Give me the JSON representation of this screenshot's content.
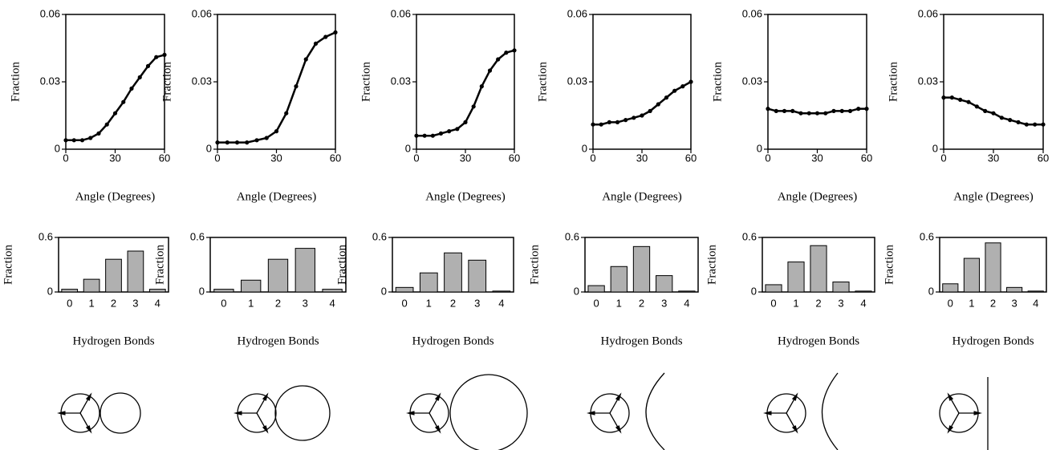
{
  "chart_data": [
    {
      "type": "line",
      "x_label": "Angle (Degrees)",
      "y_label": "Fraction",
      "color": "#000000",
      "x": [
        0,
        5,
        10,
        15,
        20,
        25,
        30,
        35,
        40,
        45,
        50,
        55,
        60
      ],
      "values": [
        0.004,
        0.004,
        0.004,
        0.005,
        0.007,
        0.011,
        0.016,
        0.021,
        0.027,
        0.032,
        0.037,
        0.041,
        0.042
      ],
      "xlim": [
        0,
        60
      ],
      "ylim": [
        0,
        0.06
      ],
      "xticks": [
        0,
        30,
        60
      ],
      "yticks": [
        0,
        0.03,
        0.06
      ]
    },
    {
      "type": "line",
      "x_label": "Angle (Degrees)",
      "y_label": "Fraction",
      "color": "#000000",
      "x": [
        0,
        5,
        10,
        15,
        20,
        25,
        30,
        35,
        40,
        45,
        50,
        55,
        60
      ],
      "values": [
        0.003,
        0.003,
        0.003,
        0.003,
        0.004,
        0.005,
        0.008,
        0.016,
        0.028,
        0.04,
        0.047,
        0.05,
        0.052
      ],
      "xlim": [
        0,
        60
      ],
      "ylim": [
        0,
        0.06
      ],
      "xticks": [
        0,
        30,
        60
      ],
      "yticks": [
        0,
        0.03,
        0.06
      ]
    },
    {
      "type": "line",
      "x_label": "Angle (Degrees)",
      "y_label": "Fraction",
      "color": "#000000",
      "x": [
        0,
        5,
        10,
        15,
        20,
        25,
        30,
        35,
        40,
        45,
        50,
        55,
        60
      ],
      "values": [
        0.006,
        0.006,
        0.006,
        0.007,
        0.008,
        0.009,
        0.012,
        0.019,
        0.028,
        0.035,
        0.04,
        0.043,
        0.044
      ],
      "xlim": [
        0,
        60
      ],
      "ylim": [
        0,
        0.06
      ],
      "xticks": [
        0,
        30,
        60
      ],
      "yticks": [
        0,
        0.03,
        0.06
      ]
    },
    {
      "type": "line",
      "x_label": "Angle (Degrees)",
      "y_label": "Fraction",
      "color": "#000000",
      "x": [
        0,
        5,
        10,
        15,
        20,
        25,
        30,
        35,
        40,
        45,
        50,
        55,
        60
      ],
      "values": [
        0.011,
        0.011,
        0.012,
        0.012,
        0.013,
        0.014,
        0.015,
        0.017,
        0.02,
        0.023,
        0.026,
        0.028,
        0.03
      ],
      "xlim": [
        0,
        60
      ],
      "ylim": [
        0,
        0.06
      ],
      "xticks": [
        0,
        30,
        60
      ],
      "yticks": [
        0,
        0.03,
        0.06
      ]
    },
    {
      "type": "line",
      "x_label": "Angle (Degrees)",
      "y_label": "Fraction",
      "color": "#000000",
      "x": [
        0,
        5,
        10,
        15,
        20,
        25,
        30,
        35,
        40,
        45,
        50,
        55,
        60
      ],
      "values": [
        0.018,
        0.017,
        0.017,
        0.017,
        0.016,
        0.016,
        0.016,
        0.016,
        0.017,
        0.017,
        0.017,
        0.018,
        0.018
      ],
      "xlim": [
        0,
        60
      ],
      "ylim": [
        0,
        0.06
      ],
      "xticks": [
        0,
        30,
        60
      ],
      "yticks": [
        0,
        0.03,
        0.06
      ]
    },
    {
      "type": "line",
      "x_label": "Angle (Degrees)",
      "y_label": "Fraction",
      "color": "#000000",
      "x": [
        0,
        5,
        10,
        15,
        20,
        25,
        30,
        35,
        40,
        45,
        50,
        55,
        60
      ],
      "values": [
        0.023,
        0.023,
        0.022,
        0.021,
        0.019,
        0.017,
        0.016,
        0.014,
        0.013,
        0.012,
        0.011,
        0.011,
        0.011
      ],
      "xlim": [
        0,
        60
      ],
      "ylim": [
        0,
        0.06
      ],
      "xticks": [
        0,
        30,
        60
      ],
      "yticks": [
        0,
        0.03,
        0.06
      ]
    },
    {
      "type": "bar",
      "x_label": "Hydrogen Bonds",
      "y_label": "Fraction",
      "color": "#b0b0b0",
      "categories": [
        "0",
        "1",
        "2",
        "3",
        "4"
      ],
      "values": [
        0.03,
        0.14,
        0.36,
        0.45,
        0.03
      ],
      "ylim": [
        0,
        0.6
      ],
      "yticks": [
        0,
        0.6
      ]
    },
    {
      "type": "bar",
      "x_label": "Hydrogen Bonds",
      "y_label": "Fraction",
      "color": "#b0b0b0",
      "categories": [
        "0",
        "1",
        "2",
        "3",
        "4"
      ],
      "values": [
        0.03,
        0.13,
        0.36,
        0.48,
        0.03
      ],
      "ylim": [
        0,
        0.6
      ],
      "yticks": [
        0,
        0.6
      ]
    },
    {
      "type": "bar",
      "x_label": "Hydrogen Bonds",
      "y_label": "Fraction",
      "color": "#b0b0b0",
      "categories": [
        "0",
        "1",
        "2",
        "3",
        "4"
      ],
      "values": [
        0.05,
        0.21,
        0.43,
        0.35,
        0.01
      ],
      "ylim": [
        0,
        0.6
      ],
      "yticks": [
        0,
        0.6
      ]
    },
    {
      "type": "bar",
      "x_label": "Hydrogen Bonds",
      "y_label": "Fraction",
      "color": "#b0b0b0",
      "categories": [
        "0",
        "1",
        "2",
        "3",
        "4"
      ],
      "values": [
        0.07,
        0.28,
        0.5,
        0.18,
        0.01
      ],
      "ylim": [
        0,
        0.6
      ],
      "yticks": [
        0,
        0.6
      ]
    },
    {
      "type": "bar",
      "x_label": "Hydrogen Bonds",
      "y_label": "Fraction",
      "color": "#b0b0b0",
      "categories": [
        "0",
        "1",
        "2",
        "3",
        "4"
      ],
      "values": [
        0.08,
        0.33,
        0.51,
        0.11,
        0.01
      ],
      "ylim": [
        0,
        0.6
      ],
      "yticks": [
        0,
        0.6
      ]
    },
    {
      "type": "bar",
      "x_label": "Hydrogen Bonds",
      "y_label": "Fraction",
      "color": "#b0b0b0",
      "categories": [
        "0",
        "1",
        "2",
        "3",
        "4"
      ],
      "values": [
        0.09,
        0.37,
        0.54,
        0.05,
        0.01
      ],
      "ylim": [
        0,
        0.6
      ],
      "yticks": [
        0,
        0.6
      ]
    }
  ]
}
